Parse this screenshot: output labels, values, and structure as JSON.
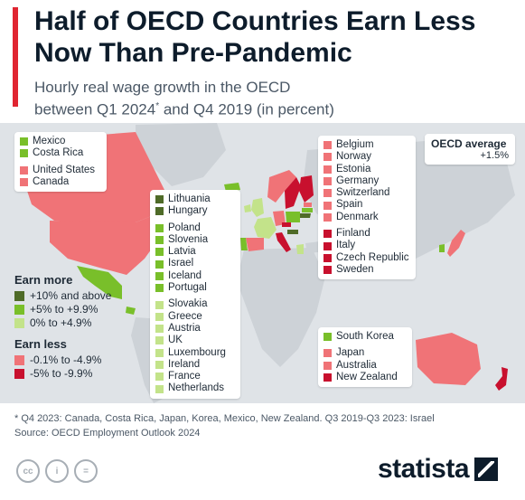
{
  "header": {
    "title": "Half of OECD Countries Earn Less Now Than Pre-Pandemic",
    "subtitle_a": "Hourly real wage growth in the OECD",
    "subtitle_b": "between Q1 2024",
    "subtitle_star": "*",
    "subtitle_c": " and Q4 2019 (in percent)"
  },
  "oecd_average": {
    "label": "OECD average",
    "value": "+1.5%"
  },
  "colors": {
    "plus10_above": "#4f6b28",
    "plus5_to_9_9": "#79bf2a",
    "plus0_to_4_9": "#c3e38a",
    "minus0_1_to_4_9": "#f07377",
    "minus5_to_9_9": "#c8102e",
    "land_non_oecd": "#cdd2d7",
    "ocean": "#dfe3e7"
  },
  "groups": {
    "americas": [
      {
        "name": "Mexico",
        "cat": "plus5_to_9_9"
      },
      {
        "name": "Costa Rica",
        "cat": "plus5_to_9_9"
      },
      {
        "name": "United States",
        "cat": "minus0_1_to_4_9"
      },
      {
        "name": "Canada",
        "cat": "minus0_1_to_4_9"
      }
    ],
    "europe_gain": [
      {
        "name": "Lithuania",
        "cat": "plus10_above"
      },
      {
        "name": "Hungary",
        "cat": "plus10_above"
      },
      {
        "name": "Poland",
        "cat": "plus5_to_9_9"
      },
      {
        "name": "Slovenia",
        "cat": "plus5_to_9_9"
      },
      {
        "name": "Latvia",
        "cat": "plus5_to_9_9"
      },
      {
        "name": "Israel",
        "cat": "plus5_to_9_9"
      },
      {
        "name": "Iceland",
        "cat": "plus5_to_9_9"
      },
      {
        "name": "Portugal",
        "cat": "plus5_to_9_9"
      },
      {
        "name": "Slovakia",
        "cat": "plus0_to_4_9"
      },
      {
        "name": "Greece",
        "cat": "plus0_to_4_9"
      },
      {
        "name": "Austria",
        "cat": "plus0_to_4_9"
      },
      {
        "name": "UK",
        "cat": "plus0_to_4_9"
      },
      {
        "name": "Luxembourg",
        "cat": "plus0_to_4_9"
      },
      {
        "name": "Ireland",
        "cat": "plus0_to_4_9"
      },
      {
        "name": "France",
        "cat": "plus0_to_4_9"
      },
      {
        "name": "Netherlands",
        "cat": "plus0_to_4_9"
      }
    ],
    "europe_loss": [
      {
        "name": "Belgium",
        "cat": "minus0_1_to_4_9"
      },
      {
        "name": "Norway",
        "cat": "minus0_1_to_4_9"
      },
      {
        "name": "Estonia",
        "cat": "minus0_1_to_4_9"
      },
      {
        "name": "Germany",
        "cat": "minus0_1_to_4_9"
      },
      {
        "name": "Switzerland",
        "cat": "minus0_1_to_4_9"
      },
      {
        "name": "Spain",
        "cat": "minus0_1_to_4_9"
      },
      {
        "name": "Denmark",
        "cat": "minus0_1_to_4_9"
      },
      {
        "name": "Finland",
        "cat": "minus5_to_9_9"
      },
      {
        "name": "Italy",
        "cat": "minus5_to_9_9"
      },
      {
        "name": "Czech Republic",
        "cat": "minus5_to_9_9"
      },
      {
        "name": "Sweden",
        "cat": "minus5_to_9_9"
      }
    ],
    "asia_pacific": [
      {
        "name": "South Korea",
        "cat": "plus5_to_9_9"
      },
      {
        "name": "Japan",
        "cat": "minus0_1_to_4_9"
      },
      {
        "name": "Australia",
        "cat": "minus0_1_to_4_9"
      },
      {
        "name": "New Zealand",
        "cat": "minus5_to_9_9"
      }
    ]
  },
  "scale": {
    "more_heading": "Earn more",
    "less_heading": "Earn less",
    "more": [
      {
        "label": "+10% and above",
        "cat": "plus10_above"
      },
      {
        "label": "+5% to +9.9%",
        "cat": "plus5_to_9_9"
      },
      {
        "label": "0% to +4.9%",
        "cat": "plus0_to_4_9"
      }
    ],
    "less": [
      {
        "label": "-0.1% to -4.9%",
        "cat": "minus0_1_to_4_9"
      },
      {
        "label": "-5% to -9.9%",
        "cat": "minus5_to_9_9"
      }
    ]
  },
  "footnote": "* Q4 2023: Canada, Costa Rica, Japan, Korea, Mexico, New Zealand. Q3 2019-Q3 2023: Israel",
  "source": "Source: OECD Employment Outlook 2024",
  "brand": "statista",
  "cc_icons": [
    {
      "name": "cc-icon",
      "glyph": "cc"
    },
    {
      "name": "attribution-icon",
      "glyph": "i"
    },
    {
      "name": "no-derivatives-icon",
      "glyph": "="
    }
  ]
}
